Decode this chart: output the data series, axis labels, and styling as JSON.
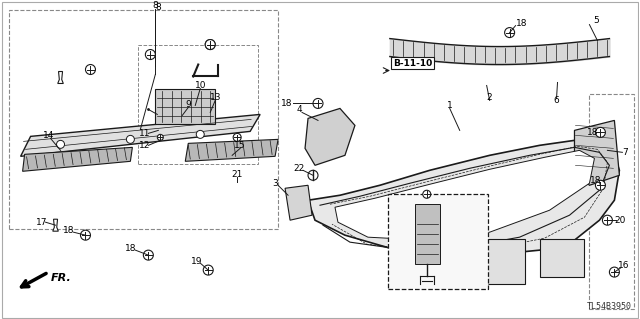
{
  "bg_color": "#ffffff",
  "diagram_code": "TL54B3950",
  "ref_label": "B-11-10",
  "fr_label": "FR.",
  "line_color": "#1a1a1a",
  "label_fontsize": 6.5,
  "diagram_bg": "#ffffff"
}
